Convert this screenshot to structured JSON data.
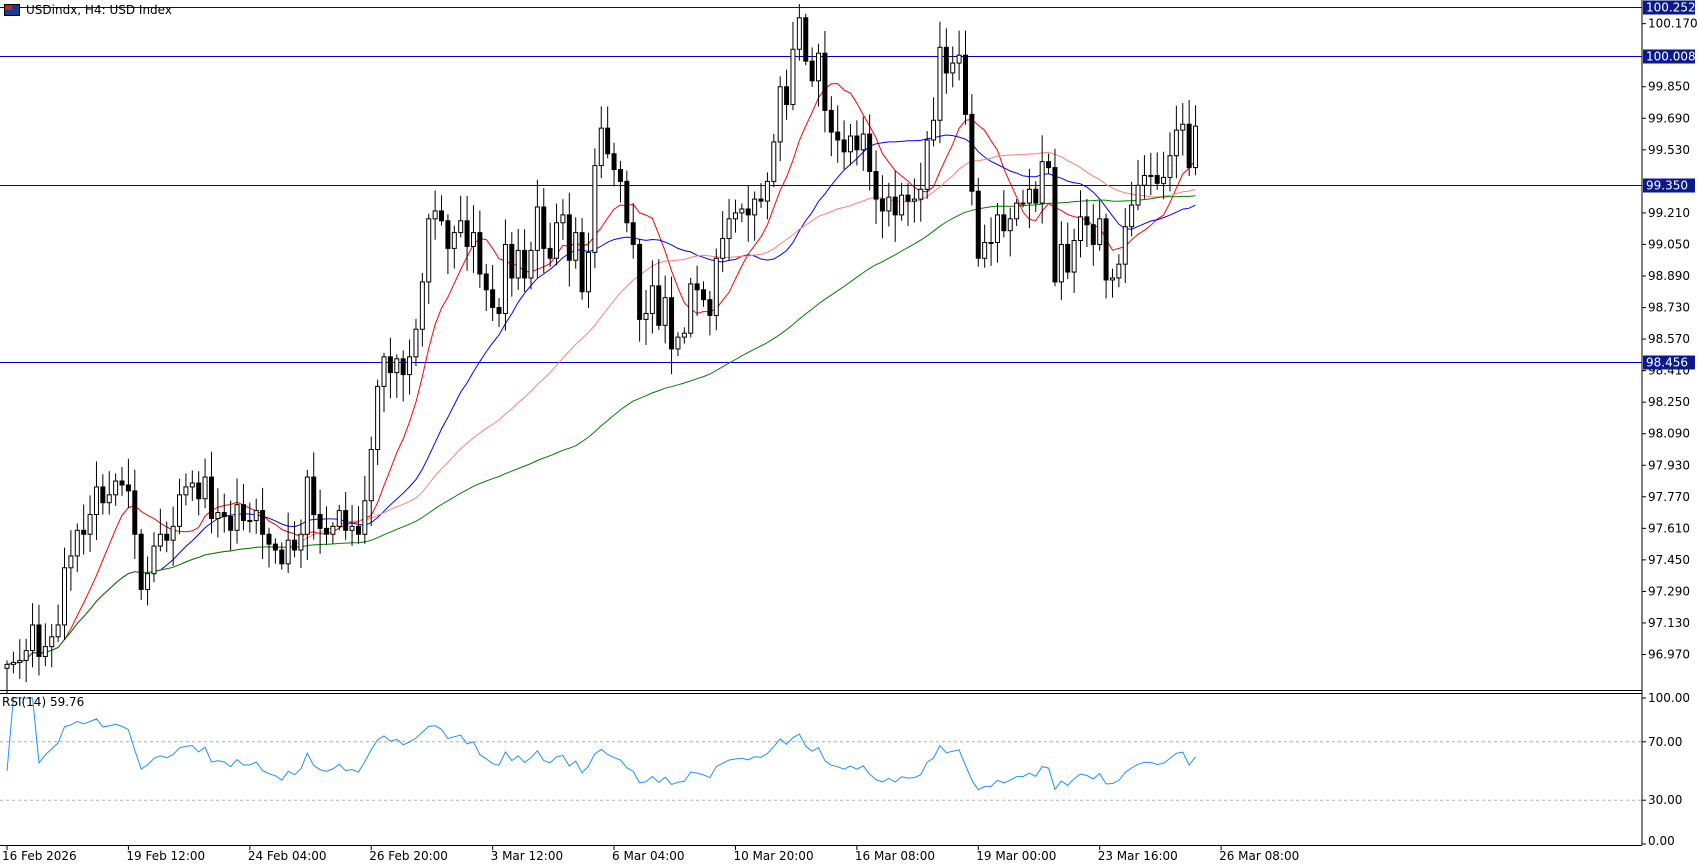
{
  "header": {
    "symbol": "USDindx",
    "timeframe": "H4",
    "description": "USD Index",
    "title_text": "USDindx, H4:  USD Index"
  },
  "rsi_label_text": "RSI(14) 59.76",
  "colors": {
    "background": "#ffffff",
    "candle": "#000000",
    "level_line": "#0000cc",
    "level_badge": "#0a1a8c",
    "ma_red": "#ff0000",
    "ma_blue": "#0000ff",
    "ma_salmon": "#ff8070",
    "ma_green": "#008000",
    "rsi_line": "#1e90ff",
    "rsi_level": "#b0b0b0"
  },
  "chart_data": [
    {
      "type": "candlestick",
      "symbol": "USDindx",
      "timeframe": "H4",
      "ylim": [
        96.79,
        100.29
      ],
      "y_ticks": [
        "100.170",
        "99.850",
        "99.690",
        "99.530",
        "99.210",
        "99.050",
        "98.890",
        "98.730",
        "98.570",
        "98.410",
        "98.250",
        "98.090",
        "97.930",
        "97.770",
        "97.610",
        "97.450",
        "97.290",
        "97.130",
        "96.970"
      ],
      "x_tick_labels": [
        "16 Feb 2026",
        "19 Feb 12:00",
        "24 Feb 04:00",
        "26 Feb 20:00",
        "3 Mar 12:00",
        "6 Mar 04:00",
        "10 Mar 20:00",
        "16 Mar 08:00",
        "19 Mar 00:00",
        "23 Mar 16:00",
        "26 Mar 08:00"
      ],
      "x_tick_bars": [
        0,
        19,
        38,
        57,
        76,
        95,
        114,
        133,
        152,
        171,
        190
      ],
      "horizontal_levels": [
        {
          "value": 100.252,
          "label": "100.252"
        },
        {
          "value": 100.008,
          "label": "100.008"
        },
        {
          "value": 99.35,
          "label": "99.350"
        },
        {
          "value": 98.456,
          "label": "98.456"
        }
      ],
      "close": [
        96.92,
        96.93,
        96.94,
        96.99,
        97.12,
        96.96,
        97.01,
        97.06,
        97.12,
        97.41,
        97.47,
        97.6,
        97.58,
        97.68,
        97.82,
        97.74,
        97.78,
        97.85,
        97.83,
        97.8,
        97.58,
        97.3,
        97.38,
        97.52,
        97.58,
        97.55,
        97.62,
        97.78,
        97.82,
        97.84,
        97.76,
        97.87,
        97.66,
        97.69,
        97.67,
        97.6,
        97.73,
        97.65,
        97.65,
        97.7,
        97.58,
        97.53,
        97.5,
        97.43,
        97.55,
        97.5,
        97.58,
        97.87,
        97.68,
        97.61,
        97.58,
        97.62,
        97.7,
        97.6,
        97.62,
        97.58,
        97.75,
        98.01,
        98.33,
        98.48,
        98.4,
        98.47,
        98.39,
        98.48,
        98.62,
        98.86,
        99.18,
        99.22,
        99.17,
        99.03,
        99.11,
        99.17,
        99.04,
        99.11,
        98.9,
        98.82,
        98.73,
        98.7,
        99.05,
        98.88,
        99.02,
        98.88,
        99.02,
        99.24,
        99.03,
        98.98,
        99.16,
        99.2,
        98.97,
        99.11,
        98.81,
        99.01,
        99.45,
        99.64,
        99.51,
        99.43,
        99.37,
        99.16,
        99.05,
        98.67,
        98.7,
        98.84,
        98.64,
        98.78,
        98.52,
        98.58,
        98.6,
        98.85,
        98.82,
        98.77,
        98.69,
        98.98,
        99.08,
        99.18,
        99.21,
        99.23,
        99.2,
        99.28,
        99.27,
        99.37,
        99.57,
        99.85,
        99.76,
        100.04,
        100.2,
        99.98,
        99.88,
        100.02,
        99.73,
        99.62,
        99.58,
        99.52,
        99.6,
        99.53,
        99.61,
        99.42,
        99.28,
        99.22,
        99.29,
        99.2,
        99.3,
        99.27,
        99.28,
        99.33,
        99.58,
        99.68,
        100.05,
        99.92,
        99.97,
        100.01,
        99.71,
        99.32,
        98.98,
        99.06,
        99.06,
        99.2,
        99.12,
        99.18,
        99.26,
        99.26,
        99.33,
        99.26,
        99.47,
        99.44,
        98.86,
        99.05,
        98.91,
        99.07,
        99.19,
        99.15,
        99.05,
        99.18,
        98.87,
        98.88,
        98.95,
        99.14,
        99.25,
        99.35,
        99.4,
        99.4,
        99.36,
        99.39,
        99.5,
        99.63,
        99.66,
        99.44,
        99.65
      ]
    },
    {
      "type": "line",
      "title": "RSI(14) 59.76",
      "ylim": [
        0,
        100
      ],
      "y_ticks": [
        "100.00",
        "70.00",
        "30.00",
        "0.00"
      ],
      "levels": [
        70,
        30
      ],
      "last_value": 59.76
    }
  ]
}
